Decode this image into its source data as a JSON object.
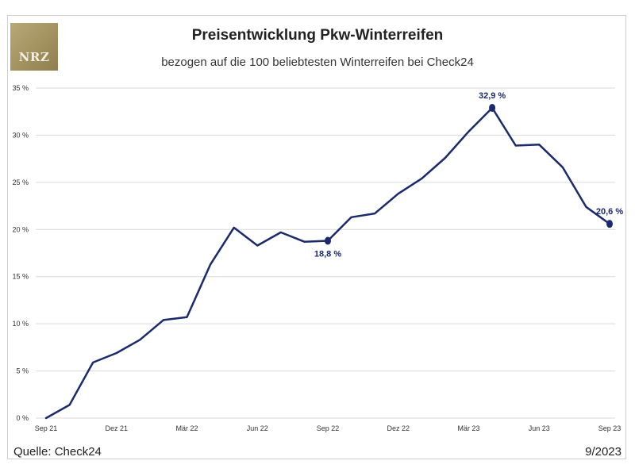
{
  "logo": {
    "text": "NRZ"
  },
  "footer": {
    "source": "Quelle: Check24",
    "date": "9/2023"
  },
  "colors": {
    "line": "#1b2a6b",
    "grid": "#d9d9d9",
    "logo": "#a89868"
  },
  "chart_data": {
    "type": "line",
    "title": "Preisentwicklung Pkw-Winterreifen",
    "subtitle": "bezogen auf die 100 beliebtesten Winterreifen bei Check24",
    "xlabel": "",
    "ylabel": "",
    "ylim": [
      0,
      35
    ],
    "yticks": [
      0,
      5,
      10,
      15,
      20,
      25,
      30,
      35
    ],
    "ytick_labels": [
      "0 %",
      "5 %",
      "10 %",
      "15 %",
      "20 %",
      "25 %",
      "30 %",
      "35 %"
    ],
    "xtick_labels": [
      "Sep 21",
      "Dez 21",
      "Mär 22",
      "Jun 22",
      "Sep 22",
      "Dez 22",
      "Mär 23",
      "Jun 23",
      "Sep 23"
    ],
    "xtick_months": [
      0,
      3,
      6,
      9,
      12,
      15,
      18,
      21,
      24
    ],
    "grid": true,
    "legend": "none",
    "x_months": [
      0,
      1,
      2,
      3,
      4,
      5,
      6,
      7,
      8,
      9,
      10,
      11,
      12,
      13,
      14,
      15,
      16,
      17,
      18,
      19,
      20,
      21,
      22,
      23,
      24
    ],
    "values": [
      0.0,
      1.4,
      5.9,
      6.9,
      8.3,
      10.4,
      10.7,
      16.3,
      20.2,
      18.3,
      19.7,
      18.7,
      18.8,
      21.3,
      21.7,
      23.8,
      25.4,
      27.6,
      30.4,
      32.9,
      28.9,
      29.0,
      26.6,
      22.4,
      20.6
    ],
    "annotations": [
      {
        "index": 12,
        "label": "18,8 %",
        "position": "below"
      },
      {
        "index": 19,
        "label": "32,9 %",
        "position": "above"
      },
      {
        "index": 24,
        "label": "20,6 %",
        "position": "above"
      }
    ]
  }
}
